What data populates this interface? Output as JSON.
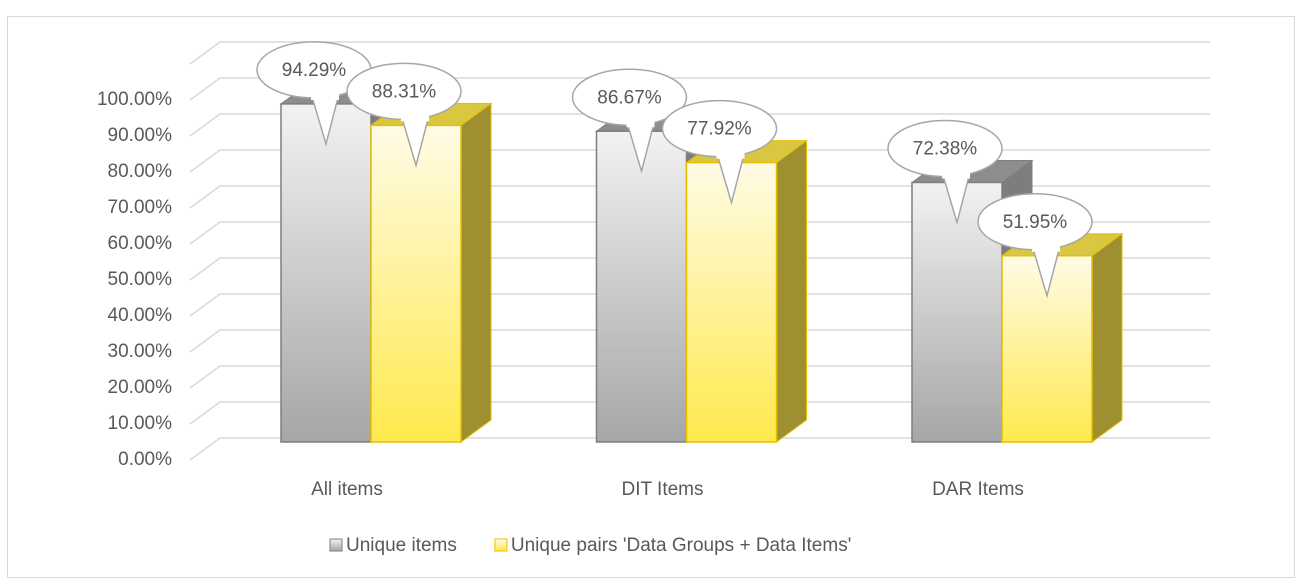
{
  "chart_data": {
    "type": "bar3d",
    "categories": [
      "All items",
      "DIT Items",
      "DAR Items"
    ],
    "series": [
      {
        "name": "Unique items",
        "color": "#a6a6a6",
        "values": [
          94.29,
          86.67,
          72.38
        ],
        "value_labels": [
          "94.29%",
          "86.67%",
          "72.38%"
        ]
      },
      {
        "name": "Unique pairs 'Data Groups + Data Items'",
        "color": "#ffe94d",
        "values": [
          88.31,
          77.92,
          51.95
        ],
        "value_labels": [
          "88.31%",
          "77.92%",
          "51.95%"
        ]
      }
    ],
    "ylim": [
      0,
      110
    ],
    "yticks": [
      {
        "value": 0,
        "label": "0.00%"
      },
      {
        "value": 10,
        "label": "10.00%"
      },
      {
        "value": 20,
        "label": "20.00%"
      },
      {
        "value": 30,
        "label": "30.00%"
      },
      {
        "value": 40,
        "label": "40.00%"
      },
      {
        "value": 50,
        "label": "50.00%"
      },
      {
        "value": 60,
        "label": "60.00%"
      },
      {
        "value": 70,
        "label": "70.00%"
      },
      {
        "value": 80,
        "label": "80.00%"
      },
      {
        "value": 90,
        "label": "90.00%"
      },
      {
        "value": 100,
        "label": "100.00%"
      }
    ],
    "grid": true,
    "legend": "bottom"
  }
}
